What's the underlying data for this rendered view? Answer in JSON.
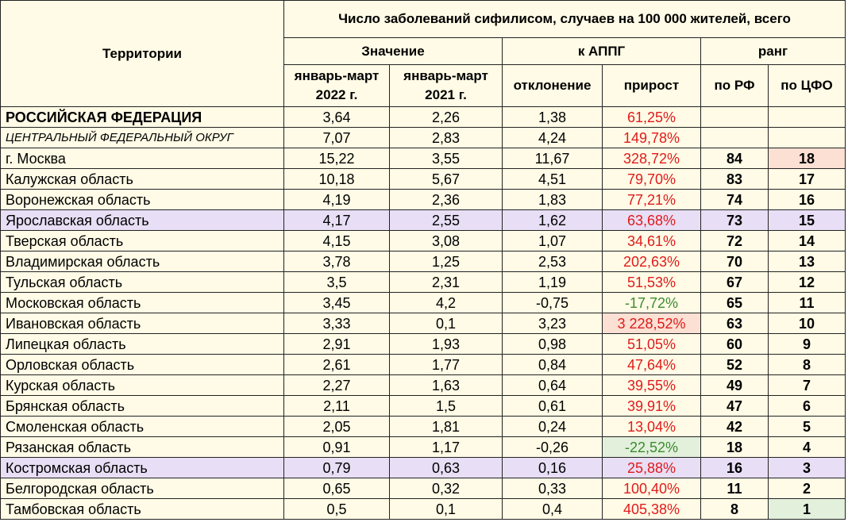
{
  "table": {
    "title": "Число заболеваний сифилисом, случаев на 100 000 жителей, всего",
    "territory_header": "Территории",
    "group_headers": [
      "Значение",
      "к АППГ",
      "ранг"
    ],
    "column_headers": [
      "январь-март 2022 г.",
      "январь-март 2021 г.",
      "отклонение",
      "прирост",
      "по РФ",
      "по ЦФО"
    ],
    "rows": [
      [
        "РОССИЙСКАЯ ФЕДЕРАЦИЯ",
        "3,64",
        "2,26",
        "1,38",
        "61,25%",
        null,
        null
      ],
      [
        "ЦЕНТРАЛЬНЫЙ ФЕДЕРАЛЬНЫЙ ОКРУГ",
        "7,07",
        "2,83",
        "4,24",
        "149,78%",
        null,
        null
      ],
      [
        "г. Москва",
        "15,22",
        "3,55",
        "11,67",
        "328,72%",
        "84",
        "18"
      ],
      [
        "Калужская область",
        "10,18",
        "5,67",
        "4,51",
        "79,70%",
        "83",
        "17"
      ],
      [
        "Воронежская область",
        "4,19",
        "2,36",
        "1,83",
        "77,21%",
        "74",
        "16"
      ],
      [
        "Ярославская область",
        "4,17",
        "2,55",
        "1,62",
        "63,68%",
        "73",
        "15"
      ],
      [
        "Тверская область",
        "4,15",
        "3,08",
        "1,07",
        "34,61%",
        "72",
        "14"
      ],
      [
        "Владимирская область",
        "3,78",
        "1,25",
        "2,53",
        "202,63%",
        "70",
        "13"
      ],
      [
        "Тульская область",
        "3,5",
        "2,31",
        "1,19",
        "51,53%",
        "67",
        "12"
      ],
      [
        "Московская область",
        "3,45",
        "4,2",
        "-0,75",
        "-17,72%",
        "65",
        "11"
      ],
      [
        "Ивановская область",
        "3,33",
        "0,1",
        "3,23",
        "3 228,52%",
        "63",
        "10"
      ],
      [
        "Липецкая область",
        "2,91",
        "1,93",
        "0,98",
        "51,05%",
        "60",
        "9"
      ],
      [
        "Орловская область",
        "2,61",
        "1,77",
        "0,84",
        "47,64%",
        "52",
        "8"
      ],
      [
        "Курская область",
        "2,27",
        "1,63",
        "0,64",
        "39,55%",
        "49",
        "7"
      ],
      [
        "Брянская область",
        "2,11",
        "1,5",
        "0,61",
        "39,91%",
        "47",
        "6"
      ],
      [
        "Смоленская область",
        "2,05",
        "1,81",
        "0,24",
        "13,04%",
        "42",
        "5"
      ],
      [
        "Рязанская область",
        "0,91",
        "1,17",
        "-0,26",
        "-22,52%",
        "18",
        "4"
      ],
      [
        "Костромская область",
        "0,79",
        "0,63",
        "0,16",
        "25,88%",
        "16",
        "3"
      ],
      [
        "Белгородская область",
        "0,65",
        "0,32",
        "0,33",
        "100,40%",
        "11",
        "2"
      ],
      [
        "Тамбовская область",
        "0,5",
        "0,1",
        "0,4",
        "405,38%",
        "8",
        "1"
      ]
    ]
  }
}
